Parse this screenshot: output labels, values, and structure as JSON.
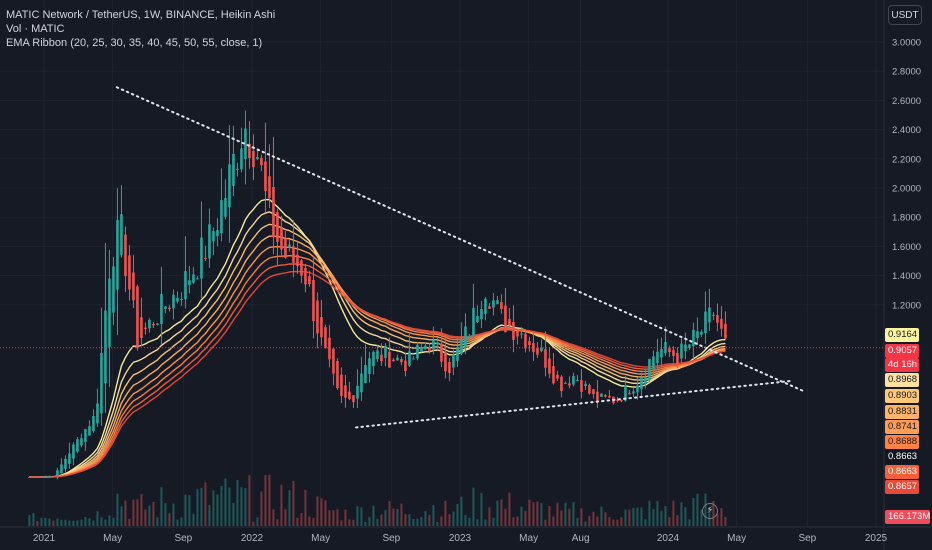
{
  "header": {
    "symbol_line": "MATIC Network / TetherUS, 1W, BINANCE, Heikin Ashi",
    "vol_line": "Vol · MATIC",
    "ema_line": "EMA Ribbon (20, 25, 30, 35, 40, 45, 50, 55, close, 1)"
  },
  "currency_button": "USDT",
  "price_labels": [
    {
      "text": "0.9164",
      "bg": "#fff59d",
      "fg": "#131722"
    },
    {
      "text": "0.9057",
      "bg": "#f23645",
      "fg": "#ffffff"
    },
    {
      "text": "4d 16h",
      "bg": "#f23645",
      "fg": "#ffffff"
    },
    {
      "text": "0.8968",
      "bg": "#ffe0a0",
      "fg": "#131722"
    },
    {
      "text": "0.8903",
      "bg": "#ffc977",
      "fg": "#131722"
    },
    {
      "text": "0.8831",
      "bg": "#ffb366",
      "fg": "#131722"
    },
    {
      "text": "0.8741",
      "bg": "#ff9c55",
      "fg": "#131722"
    },
    {
      "text": "0.8688",
      "bg": "#ff8444",
      "fg": "#131722"
    },
    {
      "text": "0.8663",
      "bg": "#131722",
      "fg": "#ffffff"
    },
    {
      "text": "0.8663",
      "bg": "#f5603a",
      "fg": "#ffffff"
    },
    {
      "text": "0.8657",
      "bg": "#e84a3a",
      "fg": "#ffffff"
    }
  ],
  "volume_label": "166.173M",
  "logo_icon": "tradingview-logo-icon",
  "colors": {
    "up": "#26a69a",
    "down": "#ef5350",
    "ribbon_fast": "#fff59d",
    "ribbon_slow": "#e84a3a",
    "trendline": "#e0e3eb",
    "grid": "#1f2330",
    "background": "#161a25"
  },
  "chart_data": {
    "type": "candlestick",
    "chart_style": "Heikin Ashi",
    "interval": "1W",
    "exchange": "BINANCE",
    "ylim": [
      0,
      3.0
    ],
    "yticks": [
      3.0,
      2.8,
      2.6,
      2.4,
      2.2,
      2.0,
      1.8,
      1.6,
      1.4,
      1.2
    ],
    "ytick_labels": [
      "3.0000",
      "2.8000",
      "2.6000",
      "2.4000",
      "2.2000",
      "2.0000",
      "1.8000",
      "1.6000",
      "1.4000",
      "1.2000"
    ],
    "xtick_labels": [
      "2021",
      "May",
      "Sep",
      "2022",
      "May",
      "Sep",
      "2023",
      "May",
      "Aug",
      "2024",
      "May",
      "Sep",
      "2025"
    ],
    "last_price": 0.9057,
    "last_volume_label": "166.173M",
    "ema_ribbon": {
      "lengths": [
        20,
        25,
        30,
        35,
        40,
        45,
        50,
        55
      ],
      "last_values": [
        0.9164,
        0.8968,
        0.8903,
        0.8831,
        0.8741,
        0.8688,
        0.8663,
        0.8657
      ]
    },
    "close_series": [
      {
        "t": 2020.92,
        "v": 0.02
      },
      {
        "t": 2021.05,
        "v": 0.03
      },
      {
        "t": 2021.15,
        "v": 0.25
      },
      {
        "t": 2021.25,
        "v": 0.45
      },
      {
        "t": 2021.32,
        "v": 1.55
      },
      {
        "t": 2021.37,
        "v": 1.7
      },
      {
        "t": 2021.45,
        "v": 0.95
      },
      {
        "t": 2021.55,
        "v": 1.15
      },
      {
        "t": 2021.65,
        "v": 1.3
      },
      {
        "t": 2021.72,
        "v": 1.45
      },
      {
        "t": 2021.8,
        "v": 1.65
      },
      {
        "t": 2021.88,
        "v": 2.0
      },
      {
        "t": 2021.96,
        "v": 2.45
      },
      {
        "t": 2022.02,
        "v": 2.3
      },
      {
        "t": 2022.08,
        "v": 1.8
      },
      {
        "t": 2022.15,
        "v": 1.55
      },
      {
        "t": 2022.25,
        "v": 1.45
      },
      {
        "t": 2022.33,
        "v": 0.95
      },
      {
        "t": 2022.42,
        "v": 0.55
      },
      {
        "t": 2022.48,
        "v": 0.55
      },
      {
        "t": 2022.55,
        "v": 0.85
      },
      {
        "t": 2022.65,
        "v": 0.85
      },
      {
        "t": 2022.75,
        "v": 0.8
      },
      {
        "t": 2022.85,
        "v": 0.95
      },
      {
        "t": 2022.95,
        "v": 0.78
      },
      {
        "t": 2023.05,
        "v": 1.05
      },
      {
        "t": 2023.12,
        "v": 1.35
      },
      {
        "t": 2023.2,
        "v": 1.1
      },
      {
        "t": 2023.3,
        "v": 1.0
      },
      {
        "t": 2023.4,
        "v": 0.85
      },
      {
        "t": 2023.48,
        "v": 0.65
      },
      {
        "t": 2023.55,
        "v": 0.72
      },
      {
        "t": 2023.65,
        "v": 0.55
      },
      {
        "t": 2023.75,
        "v": 0.55
      },
      {
        "t": 2023.85,
        "v": 0.68
      },
      {
        "t": 2023.95,
        "v": 0.9
      },
      {
        "t": 2024.05,
        "v": 0.85
      },
      {
        "t": 2024.15,
        "v": 1.0
      },
      {
        "t": 2024.22,
        "v": 1.15
      },
      {
        "t": 2024.28,
        "v": 0.9057
      }
    ],
    "trendlines": [
      {
        "name": "descending-resistance",
        "from": {
          "t": 2021.35,
          "v": 2.69
        },
        "to": {
          "t": 2024.65,
          "v": 0.61
        }
      },
      {
        "name": "ascending-support",
        "from": {
          "t": 2022.5,
          "v": 0.36
        },
        "to": {
          "t": 2024.6,
          "v": 0.68
        }
      }
    ]
  }
}
